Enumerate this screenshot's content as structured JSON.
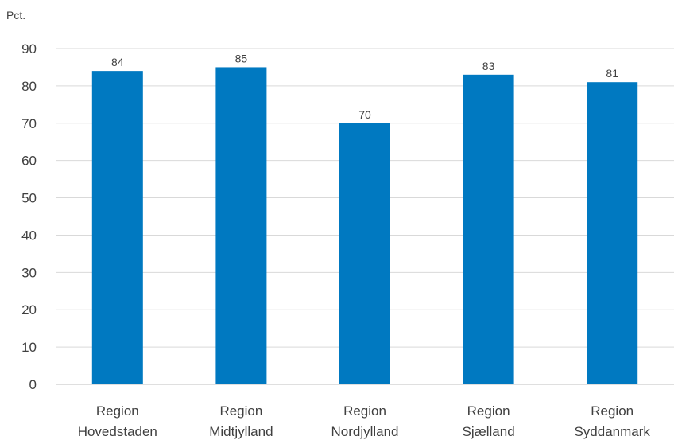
{
  "chart_data": {
    "type": "bar",
    "title": "",
    "ylabel": "Pct.",
    "xlabel": "",
    "ylim": [
      0,
      90
    ],
    "yticks": [
      0,
      10,
      20,
      30,
      40,
      50,
      60,
      70,
      80,
      90
    ],
    "grid": true,
    "categories": [
      [
        "Region",
        "Hovedstaden"
      ],
      [
        "Region",
        "Midtjylland"
      ],
      [
        "Region",
        "Nordjylland"
      ],
      [
        "Region",
        "Sjælland"
      ],
      [
        "Region",
        "Syddanmark"
      ]
    ],
    "values": [
      84,
      85,
      70,
      83,
      81
    ],
    "bar_color": "#0079c1"
  }
}
